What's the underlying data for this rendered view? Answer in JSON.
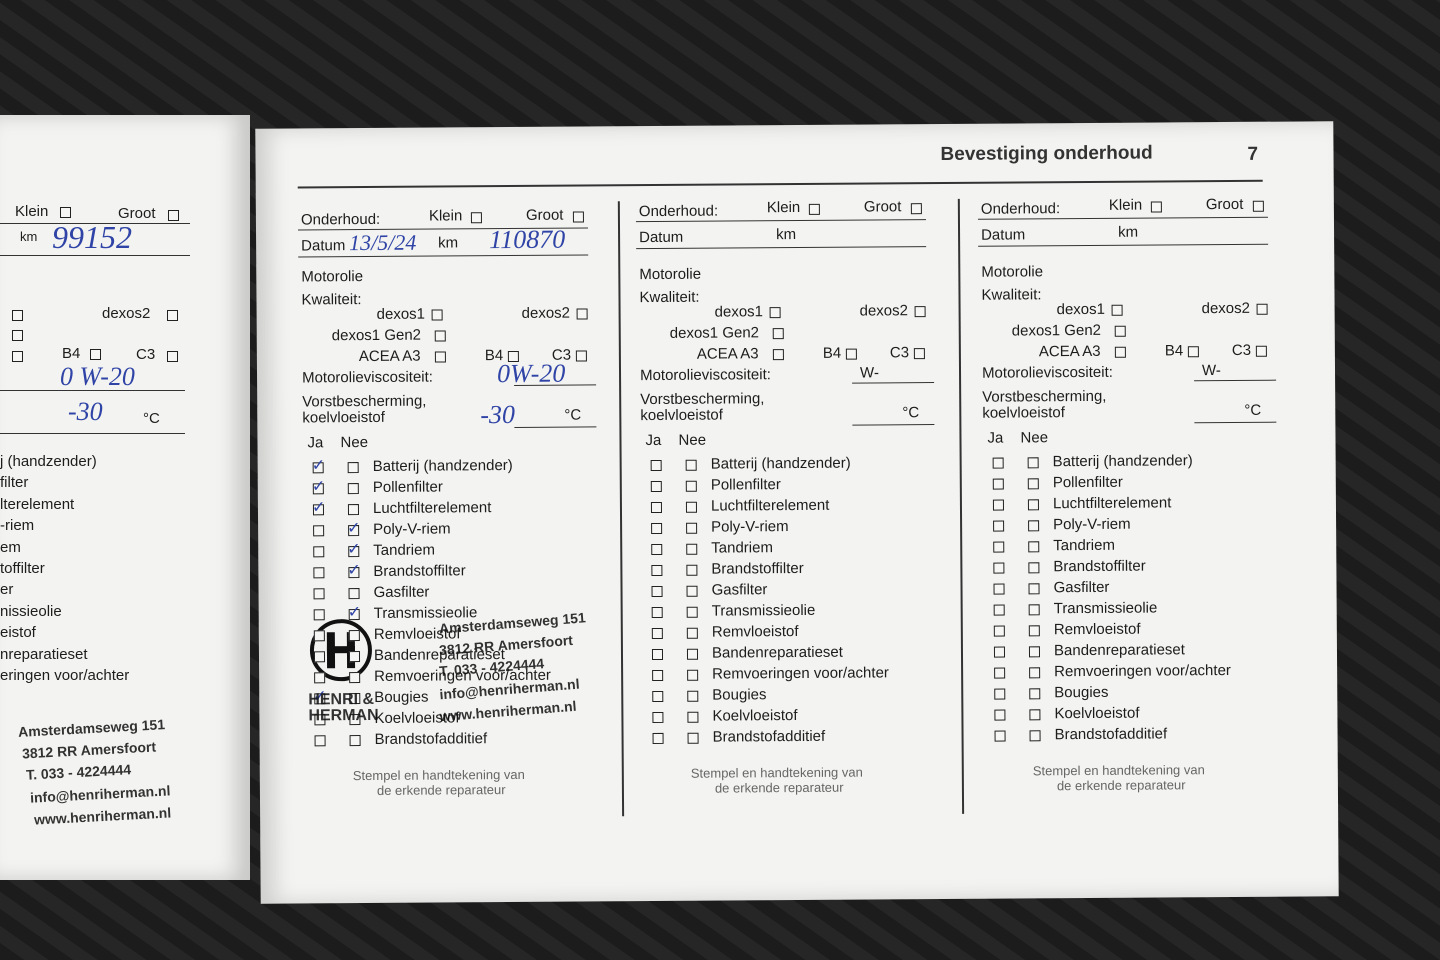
{
  "header": {
    "title": "Bevestiging onderhoud",
    "page": "7"
  },
  "left_page": {
    "klein": "Klein",
    "groot": "Groot",
    "km": "km",
    "km_value": "99152",
    "dexos2": "dexos2",
    "b4": "B4",
    "c3": "C3",
    "viscosity": "0 W-20",
    "antifreeze": "-30",
    "celsius": "°C",
    "items": [
      "j (handzender)",
      "filter",
      "lterelement",
      "-riem",
      "em",
      "toffilter",
      "er",
      "nissieolie",
      "eistof",
      "nreparatieset",
      "eringen voor/achter"
    ],
    "stamp": [
      "Amsterdamseweg 151",
      "3812 RR Amersfoort",
      "T. 033 - 4224444",
      "info@henriherman.nl",
      "www.henriherman.nl"
    ]
  },
  "columns": [
    {
      "service_label": "Onderhoud:",
      "klein": "Klein",
      "groot": "Groot",
      "datum": "Datum",
      "km": "km",
      "motorolie": "Motorolie",
      "kwaliteit": "Kwaliteit:",
      "dexos1": "dexos1",
      "dexos2": "dexos2",
      "dexos1_gen2": "dexos1 Gen2",
      "acea": "ACEA A3",
      "b4": "B4",
      "c3": "C3",
      "viscosity_label": "Motorolieviscositeit:",
      "antifreeze_label": [
        "Vorstbescherming,",
        "koelvloeistof"
      ],
      "celsius": "°C",
      "ja": "Ja",
      "nee": "Nee",
      "items": [
        "Batterij (handzender)",
        "Pollenfilter",
        "Luchtfilterelement",
        "Poly-V-riem",
        "Tandriem",
        "Brandstoffilter",
        "Gasfilter",
        "Transmissieolie",
        "Remvloeistof",
        "Bandenreparatieset",
        "Remvoeringen voor/achter",
        "Bougies",
        "Koelvloeistof",
        "Brandstofadditief"
      ],
      "ja_checked": [
        true,
        true,
        true,
        false,
        false,
        false,
        false,
        false,
        false,
        false,
        false,
        true,
        false,
        false
      ],
      "nee_checked": [
        false,
        false,
        false,
        true,
        true,
        true,
        false,
        true,
        false,
        false,
        false,
        false,
        false,
        false
      ],
      "handwritten": {
        "date": "13/5/24",
        "km": "110870",
        "viscosity": "0W-20",
        "antifreeze": "-30"
      },
      "stamp_note": [
        "Stempel en handtekening van",
        "de erkende reparateur"
      ],
      "stamp": {
        "name": [
          "HENRI &",
          "HERMAN"
        ],
        "lines": [
          "Amsterdamseweg 151",
          "3812 RR Amersfoort",
          "T. 033 - 4224444",
          "info@henriherman.nl",
          "www.henriherman.nl"
        ]
      }
    },
    {
      "service_label": "Onderhoud:",
      "klein": "Klein",
      "groot": "Groot",
      "datum": "Datum",
      "km": "km",
      "motorolie": "Motorolie",
      "kwaliteit": "Kwaliteit:",
      "dexos1": "dexos1",
      "dexos2": "dexos2",
      "dexos1_gen2": "dexos1 Gen2",
      "acea": "ACEA A3",
      "b4": "B4",
      "c3": "C3",
      "viscosity_label": "Motorolieviscositeit:",
      "viscosity_prefix": "W-",
      "antifreeze_label": [
        "Vorstbescherming,",
        "koelvloeistof"
      ],
      "celsius": "°C",
      "ja": "Ja",
      "nee": "Nee",
      "items": [
        "Batterij (handzender)",
        "Pollenfilter",
        "Luchtfilterelement",
        "Poly-V-riem",
        "Tandriem",
        "Brandstoffilter",
        "Gasfilter",
        "Transmissieolie",
        "Remvloeistof",
        "Bandenreparatieset",
        "Remvoeringen voor/achter",
        "Bougies",
        "Koelvloeistof",
        "Brandstofadditief"
      ],
      "stamp_note": [
        "Stempel en handtekening van",
        "de erkende reparateur"
      ]
    },
    {
      "service_label": "Onderhoud:",
      "klein": "Klein",
      "groot": "Groot",
      "datum": "Datum",
      "km": "km",
      "motorolie": "Motorolie",
      "kwaliteit": "Kwaliteit:",
      "dexos1": "dexos1",
      "dexos2": "dexos2",
      "dexos1_gen2": "dexos1 Gen2",
      "acea": "ACEA A3",
      "b4": "B4",
      "c3": "C3",
      "viscosity_label": "Motorolieviscositeit:",
      "viscosity_prefix": "W-",
      "antifreeze_label": [
        "Vorstbescherming,",
        "koelvloeistof"
      ],
      "celsius": "°C",
      "ja": "Ja",
      "nee": "Nee",
      "items": [
        "Batterij (handzender)",
        "Pollenfilter",
        "Luchtfilterelement",
        "Poly-V-riem",
        "Tandriem",
        "Brandstoffilter",
        "Gasfilter",
        "Transmissieolie",
        "Remvloeistof",
        "Bandenreparatieset",
        "Remvoeringen voor/achter",
        "Bougies",
        "Koelvloeistof",
        "Brandstofadditief"
      ],
      "stamp_note": [
        "Stempel en handtekening van",
        "de erkende reparateur"
      ]
    }
  ]
}
